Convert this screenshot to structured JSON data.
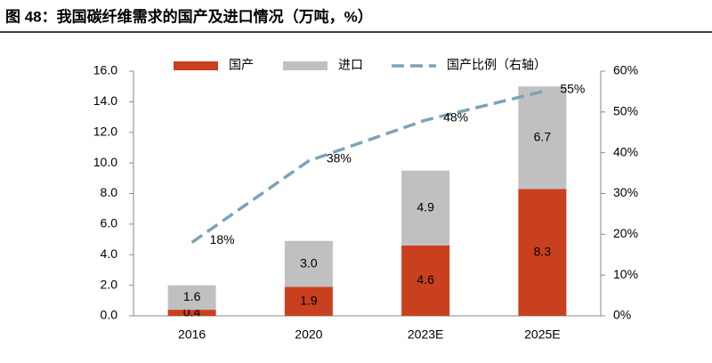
{
  "chart_data": {
    "type": "bar-line",
    "title": "图 48：我国碳纤维需求的国产及进口情况（万吨，%）",
    "categories": [
      "2016",
      "2020",
      "2023E",
      "2025E"
    ],
    "series": [
      {
        "name": "国产",
        "type": "bar",
        "color": "#c9401e",
        "values": [
          0.4,
          1.9,
          4.6,
          8.3
        ],
        "value_labels": [
          "0.4",
          "1.9",
          "4.6",
          "8.3"
        ]
      },
      {
        "name": "进口",
        "type": "bar",
        "color": "#c0c0c0",
        "values": [
          1.6,
          3.0,
          4.9,
          6.7
        ],
        "value_labels": [
          "1.6",
          "3.0",
          "4.9",
          "6.7"
        ]
      },
      {
        "name": "国产比例（右轴）",
        "type": "line",
        "axis": "y2",
        "color": "#7ba3b8",
        "values": [
          18,
          38,
          48,
          55
        ],
        "value_labels": [
          "18%",
          "38%",
          "48%",
          "55%"
        ]
      }
    ],
    "ylim": [
      0,
      16
    ],
    "yticks": [
      {
        "value": 0,
        "label": "0.0"
      },
      {
        "value": 2,
        "label": "2.0"
      },
      {
        "value": 4,
        "label": "4.0"
      },
      {
        "value": 6,
        "label": "6.0"
      },
      {
        "value": 8,
        "label": "8.0"
      },
      {
        "value": 10,
        "label": "10.0"
      },
      {
        "value": 12,
        "label": "12.0"
      },
      {
        "value": 14,
        "label": "14.0"
      },
      {
        "value": 16,
        "label": "16.0"
      }
    ],
    "y2lim": [
      0,
      60
    ],
    "y2ticks": [
      {
        "value": 0,
        "label": "0%"
      },
      {
        "value": 10,
        "label": "10%"
      },
      {
        "value": 20,
        "label": "20%"
      },
      {
        "value": 30,
        "label": "30%"
      },
      {
        "value": 40,
        "label": "40%"
      },
      {
        "value": 50,
        "label": "50%"
      },
      {
        "value": 60,
        "label": "60%"
      }
    ],
    "stacked": true,
    "legend": "top"
  }
}
